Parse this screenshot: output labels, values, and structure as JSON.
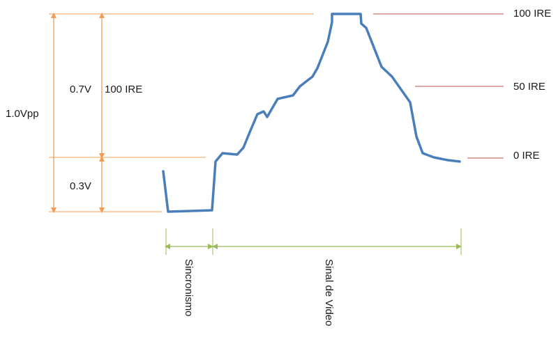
{
  "labels": {
    "vpp": "1.0Vpp",
    "v07": "0.7V",
    "ire100_left": "100 IRE",
    "v03": "0.3V",
    "ire100_right": "100 IRE",
    "ire50": "50 IRE",
    "ire0": "0 IRE",
    "sync": "Sincronismo",
    "video": "Sinal de Video"
  },
  "colors": {
    "orange": "#f5a05a",
    "signal": "#4a7ebb",
    "red": "#c0504d",
    "green": "#9bbb59"
  }
}
